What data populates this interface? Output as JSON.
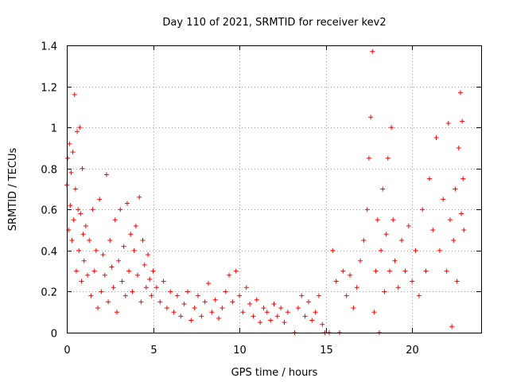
{
  "chart_data": {
    "type": "scatter",
    "title": "Day 110 of 2021, SRMTID for receiver kev2",
    "xlabel": "GPS time / hours",
    "ylabel": "SRMTID / TECUs",
    "xlim": [
      0,
      24
    ],
    "ylim": [
      0,
      1.4
    ],
    "xticks": [
      0,
      5,
      10,
      15,
      20
    ],
    "xtick_labels": [
      "0",
      "5",
      "10",
      "15",
      "20"
    ],
    "yticks": [
      0,
      0.2,
      0.4,
      0.6,
      0.8,
      1.0,
      1.2,
      1.4
    ],
    "ytick_labels": [
      "0",
      "0.2",
      "0.4",
      "0.6",
      "0.8",
      "1",
      "1.2",
      "1.4"
    ],
    "grid": true,
    "marker": "+",
    "color": "#ff0000",
    "series": [
      {
        "name": "SRMTID",
        "points": [
          [
            0.0,
            0.72
          ],
          [
            0.05,
            0.85
          ],
          [
            0.1,
            0.5
          ],
          [
            0.15,
            0.92
          ],
          [
            0.2,
            0.62
          ],
          [
            0.25,
            0.78
          ],
          [
            0.3,
            0.45
          ],
          [
            0.35,
            0.88
          ],
          [
            0.4,
            0.55
          ],
          [
            0.45,
            1.16
          ],
          [
            0.5,
            0.7
          ],
          [
            0.55,
            0.3
          ],
          [
            0.6,
            0.98
          ],
          [
            0.65,
            0.6
          ],
          [
            0.7,
            0.4
          ],
          [
            0.75,
            1.0
          ],
          [
            0.8,
            0.58
          ],
          [
            0.85,
            0.25
          ],
          [
            0.9,
            0.8
          ],
          [
            0.95,
            0.48
          ],
          [
            1.0,
            0.35
          ],
          [
            1.1,
            0.52
          ],
          [
            1.2,
            0.28
          ],
          [
            1.3,
            0.45
          ],
          [
            1.4,
            0.18
          ],
          [
            1.5,
            0.6
          ],
          [
            1.6,
            0.3
          ],
          [
            1.7,
            0.4
          ],
          [
            1.8,
            0.12
          ],
          [
            1.9,
            0.65
          ],
          [
            2.0,
            0.2
          ],
          [
            2.1,
            0.38
          ],
          [
            2.2,
            0.28
          ],
          [
            2.3,
            0.77
          ],
          [
            2.4,
            0.15
          ],
          [
            2.5,
            0.45
          ],
          [
            2.6,
            0.32
          ],
          [
            2.7,
            0.22
          ],
          [
            2.8,
            0.55
          ],
          [
            2.9,
            0.1
          ],
          [
            3.0,
            0.35
          ],
          [
            3.1,
            0.6
          ],
          [
            3.2,
            0.25
          ],
          [
            3.3,
            0.42
          ],
          [
            3.4,
            0.18
          ],
          [
            3.5,
            0.63
          ],
          [
            3.6,
            0.3
          ],
          [
            3.7,
            0.48
          ],
          [
            3.8,
            0.2
          ],
          [
            3.9,
            0.4
          ],
          [
            4.0,
            0.52
          ],
          [
            4.1,
            0.28
          ],
          [
            4.2,
            0.66
          ],
          [
            4.3,
            0.15
          ],
          [
            4.4,
            0.45
          ],
          [
            4.5,
            0.33
          ],
          [
            4.6,
            0.22
          ],
          [
            4.7,
            0.38
          ],
          [
            4.8,
            0.26
          ],
          [
            4.9,
            0.18
          ],
          [
            5.0,
            0.3
          ],
          [
            5.2,
            0.22
          ],
          [
            5.4,
            0.15
          ],
          [
            5.6,
            0.25
          ],
          [
            5.8,
            0.12
          ],
          [
            6.0,
            0.2
          ],
          [
            6.2,
            0.1
          ],
          [
            6.4,
            0.18
          ],
          [
            6.6,
            0.08
          ],
          [
            6.8,
            0.14
          ],
          [
            7.0,
            0.2
          ],
          [
            7.2,
            0.06
          ],
          [
            7.4,
            0.12
          ],
          [
            7.6,
            0.18
          ],
          [
            7.8,
            0.08
          ],
          [
            8.0,
            0.15
          ],
          [
            8.2,
            0.24
          ],
          [
            8.4,
            0.1
          ],
          [
            8.6,
            0.16
          ],
          [
            8.8,
            0.07
          ],
          [
            9.0,
            0.12
          ],
          [
            9.2,
            0.2
          ],
          [
            9.4,
            0.28
          ],
          [
            9.6,
            0.15
          ],
          [
            9.8,
            0.3
          ],
          [
            10.0,
            0.18
          ],
          [
            10.2,
            0.1
          ],
          [
            10.4,
            0.22
          ],
          [
            10.6,
            0.14
          ],
          [
            10.8,
            0.08
          ],
          [
            11.0,
            0.16
          ],
          [
            11.2,
            0.05
          ],
          [
            11.4,
            0.12
          ],
          [
            11.6,
            0.1
          ],
          [
            11.8,
            0.06
          ],
          [
            12.0,
            0.14
          ],
          [
            12.2,
            0.08
          ],
          [
            12.4,
            0.12
          ],
          [
            12.6,
            0.05
          ],
          [
            12.8,
            0.1
          ],
          [
            13.2,
            0.0
          ],
          [
            13.4,
            0.12
          ],
          [
            13.6,
            0.18
          ],
          [
            13.8,
            0.08
          ],
          [
            14.0,
            0.15
          ],
          [
            14.2,
            0.06
          ],
          [
            14.4,
            0.1
          ],
          [
            14.6,
            0.18
          ],
          [
            14.8,
            0.04
          ],
          [
            14.95,
            0.0
          ],
          [
            15.2,
            0.0
          ],
          [
            15.4,
            0.4
          ],
          [
            15.6,
            0.25
          ],
          [
            15.8,
            0.0
          ],
          [
            16.0,
            0.3
          ],
          [
            16.2,
            0.18
          ],
          [
            16.4,
            0.28
          ],
          [
            16.6,
            0.12
          ],
          [
            16.8,
            0.22
          ],
          [
            17.0,
            0.35
          ],
          [
            17.2,
            0.45
          ],
          [
            17.4,
            0.6
          ],
          [
            17.5,
            0.85
          ],
          [
            17.6,
            1.05
          ],
          [
            17.7,
            1.37
          ],
          [
            17.8,
            0.1
          ],
          [
            17.9,
            0.3
          ],
          [
            18.0,
            0.55
          ],
          [
            18.1,
            0.0
          ],
          [
            18.2,
            0.4
          ],
          [
            18.3,
            0.7
          ],
          [
            18.4,
            0.2
          ],
          [
            18.5,
            0.48
          ],
          [
            18.6,
            0.85
          ],
          [
            18.7,
            0.3
          ],
          [
            18.8,
            1.0
          ],
          [
            18.9,
            0.55
          ],
          [
            19.0,
            0.35
          ],
          [
            19.2,
            0.22
          ],
          [
            19.4,
            0.45
          ],
          [
            19.6,
            0.3
          ],
          [
            19.8,
            0.52
          ],
          [
            20.0,
            0.25
          ],
          [
            20.2,
            0.4
          ],
          [
            20.4,
            0.18
          ],
          [
            20.6,
            0.6
          ],
          [
            20.8,
            0.3
          ],
          [
            21.0,
            0.75
          ],
          [
            21.2,
            0.5
          ],
          [
            21.4,
            0.95
          ],
          [
            21.6,
            0.4
          ],
          [
            21.8,
            0.65
          ],
          [
            22.0,
            0.3
          ],
          [
            22.1,
            1.02
          ],
          [
            22.2,
            0.55
          ],
          [
            22.3,
            0.03
          ],
          [
            22.4,
            0.45
          ],
          [
            22.5,
            0.7
          ],
          [
            22.6,
            0.25
          ],
          [
            22.7,
            0.9
          ],
          [
            22.8,
            1.17
          ],
          [
            22.85,
            0.58
          ],
          [
            22.9,
            1.03
          ],
          [
            22.95,
            0.75
          ],
          [
            23.0,
            0.5
          ]
        ]
      }
    ]
  }
}
